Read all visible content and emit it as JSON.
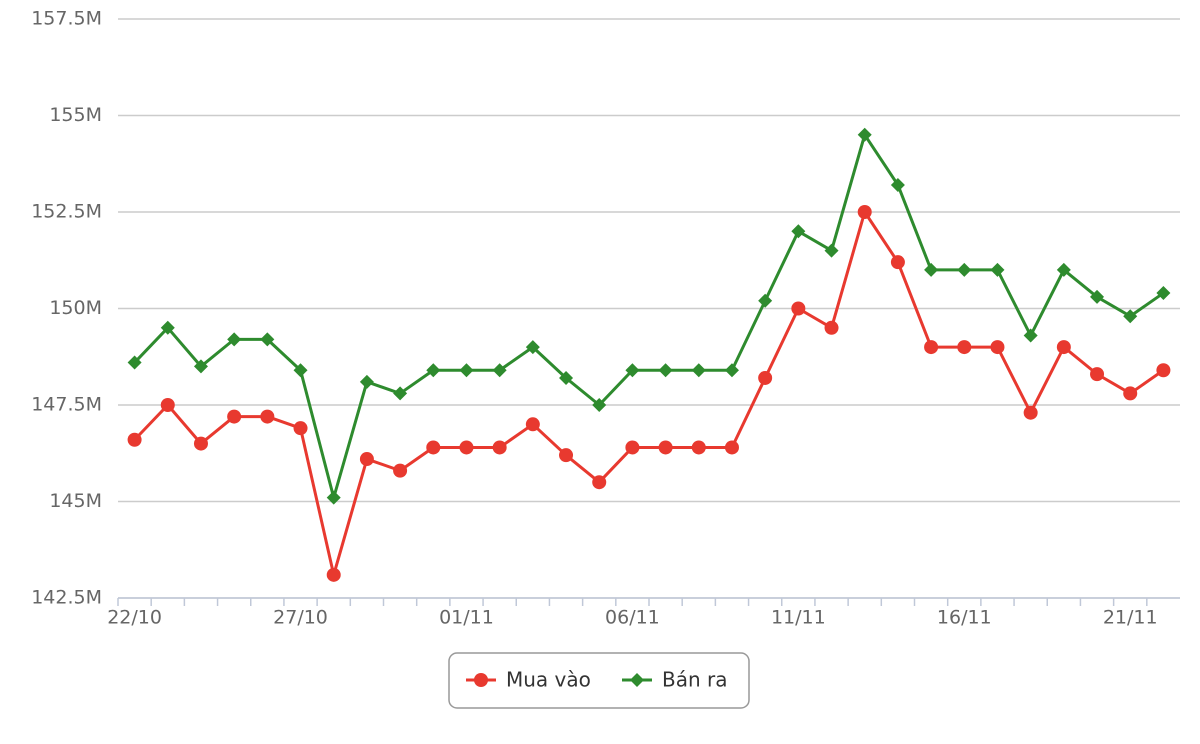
{
  "chart_data": {
    "type": "line",
    "categories": [
      "22/10",
      null,
      null,
      null,
      null,
      "27/10",
      null,
      null,
      null,
      null,
      "01/11",
      null,
      null,
      null,
      null,
      "06/11",
      null,
      null,
      null,
      null,
      "11/11",
      null,
      null,
      null,
      null,
      "16/11",
      null,
      null,
      null,
      null,
      "21/11",
      null
    ],
    "series": [
      {
        "name": "Mua vào",
        "color": "#e8392f",
        "marker": "circle",
        "values": [
          146.6,
          147.5,
          146.5,
          147.2,
          147.2,
          146.9,
          143.1,
          146.1,
          145.8,
          146.4,
          146.4,
          146.4,
          147.0,
          146.2,
          145.5,
          146.4,
          146.4,
          146.4,
          146.4,
          148.2,
          150.0,
          149.5,
          152.5,
          151.2,
          149.0,
          149.0,
          149.0,
          147.3,
          149.0,
          148.3,
          147.8,
          148.4
        ]
      },
      {
        "name": "Bán ra",
        "color": "#2e8b2e",
        "marker": "diamond",
        "values": [
          148.6,
          149.5,
          148.5,
          149.2,
          149.2,
          148.4,
          145.1,
          148.1,
          147.8,
          148.4,
          148.4,
          148.4,
          149.0,
          148.2,
          147.5,
          148.4,
          148.4,
          148.4,
          148.4,
          150.2,
          152.0,
          151.5,
          154.5,
          153.2,
          151.0,
          151.0,
          151.0,
          149.3,
          151.0,
          150.3,
          149.8,
          150.4
        ]
      }
    ],
    "ylim": [
      142.5,
      157.5
    ],
    "yticks": [
      {
        "value": 142.5,
        "label": "142.5M"
      },
      {
        "value": 145,
        "label": "145M"
      },
      {
        "value": 147.5,
        "label": "147.5M"
      },
      {
        "value": 150,
        "label": "150M"
      },
      {
        "value": 152.5,
        "label": "152.5M"
      },
      {
        "value": 155,
        "label": "155M"
      },
      {
        "value": 157.5,
        "label": "157.5M"
      }
    ],
    "grid": true,
    "legend": "bottom"
  }
}
